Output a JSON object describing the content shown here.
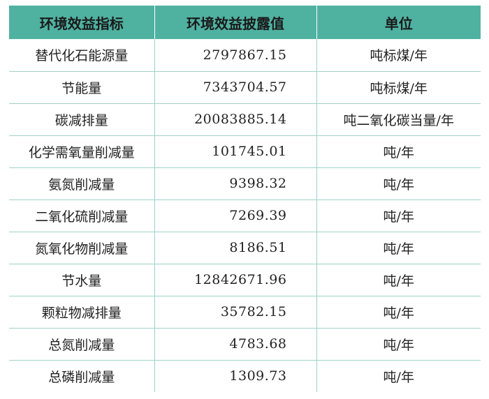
{
  "table": {
    "headers": [
      "环境效益指标",
      "环境效益披露值",
      "单位"
    ],
    "rows": [
      {
        "name": "替代化石能源量",
        "value": "2797867.15",
        "unit": "吨标煤/年"
      },
      {
        "name": "节能量",
        "value": "7343704.57",
        "unit": "吨标煤/年"
      },
      {
        "name": "碳减排量",
        "value": "20083885.14",
        "unit": "吨二氧化碳当量/年"
      },
      {
        "name": "化学需氧量削减量",
        "value": "101745.01",
        "unit": "吨/年"
      },
      {
        "name": "氨氮削减量",
        "value": "9398.32",
        "unit": "吨/年"
      },
      {
        "name": "二氧化硫削减量",
        "value": "7269.39",
        "unit": "吨/年"
      },
      {
        "name": "氮氧化物削减量",
        "value": "8186.51",
        "unit": "吨/年"
      },
      {
        "name": "节水量",
        "value": "12842671.96",
        "unit": "吨/年"
      },
      {
        "name": "颗粒物减排量",
        "value": "35782.15",
        "unit": "吨/年"
      },
      {
        "name": "总氮削减量",
        "value": "4783.68",
        "unit": "吨/年"
      },
      {
        "name": "总磷削减量",
        "value": "1309.73",
        "unit": "吨/年"
      }
    ]
  },
  "colors": {
    "header_bg": "#4fb2a1",
    "grid_line": "#9fd2c6"
  }
}
